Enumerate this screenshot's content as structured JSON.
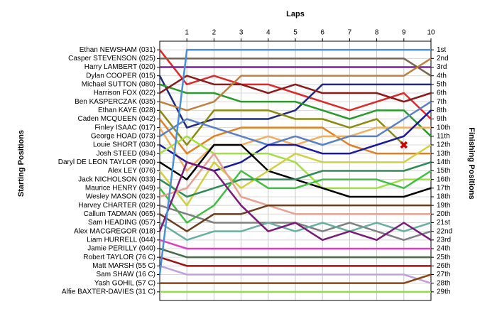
{
  "chart_data": {
    "type": "line",
    "title": "Laps",
    "ylabel": "Starting Positions",
    "y2label": "Finishing Positions",
    "x": [
      0,
      1,
      2,
      3,
      4,
      5,
      6,
      7,
      8,
      9,
      10
    ],
    "xlim": [
      0,
      10
    ],
    "xticks": [
      1,
      2,
      3,
      4,
      5,
      6,
      7,
      8,
      9,
      10
    ],
    "ylim": [
      30,
      0
    ],
    "grid": true,
    "yticks": [
      {
        "value": 1,
        "label": "Ethan NEWSHAM (031)"
      },
      {
        "value": 2,
        "label": "Casper STEVENSON (025)"
      },
      {
        "value": 3,
        "label": "Harry LAMBERT (020)"
      },
      {
        "value": 4,
        "label": "Dylan COOPER (015)"
      },
      {
        "value": 5,
        "label": "Michael SUTTON (080)"
      },
      {
        "value": 6,
        "label": "Harrison FOX (022)"
      },
      {
        "value": 7,
        "label": "Ben KASPERCZAK (035)"
      },
      {
        "value": 8,
        "label": "Ethan KAYE (028)"
      },
      {
        "value": 9,
        "label": "Caden MCQUEEN (042)"
      },
      {
        "value": 10,
        "label": "Finley ISAAC (017)"
      },
      {
        "value": 11,
        "label": "George HOAD (073)"
      },
      {
        "value": 12,
        "label": "Louie SHORT (030)"
      },
      {
        "value": 13,
        "label": "Josh STEED (094)"
      },
      {
        "value": 14,
        "label": "Daryl DE LEON TAYLOR (090)"
      },
      {
        "value": 15,
        "label": "Alex LEY (076)"
      },
      {
        "value": 16,
        "label": "Jack NICHOLSON (033)"
      },
      {
        "value": 17,
        "label": "Maurice HENRY (049)"
      },
      {
        "value": 18,
        "label": "Wesley MASON (023)"
      },
      {
        "value": 19,
        "label": "Harvey CHARTER (029)"
      },
      {
        "value": 20,
        "label": "Callum TADMAN (065)"
      },
      {
        "value": 21,
        "label": "Sam HEADING (057)"
      },
      {
        "value": 22,
        "label": "Alex MACGREGOR (018)"
      },
      {
        "value": 23,
        "label": "Liam HURRELL (044)"
      },
      {
        "value": 24,
        "label": "Jamie PERILLY (040)"
      },
      {
        "value": 25,
        "label": "Robert TAYLOR (76 C)"
      },
      {
        "value": 26,
        "label": "Matt MARSH (55 C)"
      },
      {
        "value": 27,
        "label": "Sam SHAW (16 C)"
      },
      {
        "value": 28,
        "label": "Yash GOHIL (57 C)"
      },
      {
        "value": 29,
        "label": "Alfie BAXTER-DAVIES (31 C)"
      }
    ],
    "y2ticks": [
      {
        "value": 1,
        "label": "1st"
      },
      {
        "value": 2,
        "label": "2nd"
      },
      {
        "value": 3,
        "label": "3rd"
      },
      {
        "value": 4,
        "label": "4th"
      },
      {
        "value": 5,
        "label": "5th"
      },
      {
        "value": 6,
        "label": "6th"
      },
      {
        "value": 7,
        "label": "7th"
      },
      {
        "value": 8,
        "label": "8th"
      },
      {
        "value": 9,
        "label": "9th"
      },
      {
        "value": 10,
        "label": "10th"
      },
      {
        "value": 11,
        "label": "11th"
      },
      {
        "value": 12,
        "label": "12th"
      },
      {
        "value": 13,
        "label": "13th"
      },
      {
        "value": 14,
        "label": "14th"
      },
      {
        "value": 15,
        "label": "15th"
      },
      {
        "value": 16,
        "label": "16th"
      },
      {
        "value": 17,
        "label": "17th"
      },
      {
        "value": 18,
        "label": "18th"
      },
      {
        "value": 19,
        "label": "19th"
      },
      {
        "value": 20,
        "label": "20th"
      },
      {
        "value": 21,
        "label": "21st"
      },
      {
        "value": 22,
        "label": "22nd"
      },
      {
        "value": 23,
        "label": "23rd"
      },
      {
        "value": 24,
        "label": "24th"
      },
      {
        "value": 25,
        "label": "25th"
      },
      {
        "value": 26,
        "label": "26th"
      },
      {
        "value": 27,
        "label": "27th"
      },
      {
        "value": 28,
        "label": "28th"
      },
      {
        "value": 29,
        "label": "29th"
      }
    ],
    "series": [
      {
        "name": "Ethan NEWSHAM (031)",
        "color": "#e02828",
        "values": [
          1,
          5,
          4,
          5,
          5,
          6,
          7,
          8,
          7,
          6,
          9
        ]
      },
      {
        "name": "Casper STEVENSON (025)",
        "color": "#7a6650",
        "values": [
          2,
          2,
          2,
          2,
          2,
          2,
          2,
          2,
          2,
          2,
          4
        ]
      },
      {
        "name": "Harry LAMBERT (020)",
        "color": "#7b1fa2",
        "values": [
          3,
          3,
          3,
          3,
          3,
          3,
          3,
          3,
          3,
          3,
          3
        ]
      },
      {
        "name": "Dylan COOPER (015)",
        "color": "#1f2a80",
        "values": [
          4,
          10,
          9,
          9,
          9,
          8,
          5,
          5,
          5,
          5,
          5
        ]
      },
      {
        "name": "Michael SUTTON (080)",
        "color": "#2a9a2a",
        "values": [
          5,
          6,
          6,
          7,
          7,
          7,
          8,
          9,
          8,
          8,
          11
        ]
      },
      {
        "name": "Harrison FOX (022)",
        "color": "#8b1a1a",
        "values": [
          6,
          4,
          5,
          5,
          6,
          5,
          6,
          6,
          6,
          7,
          6
        ]
      },
      {
        "name": "Ben KASPERCZAK (035)",
        "color": "#c08040",
        "values": [
          7,
          8,
          7,
          4,
          4,
          4,
          4,
          4,
          4,
          4,
          2
        ]
      },
      {
        "name": "Ethan KAYE (028)",
        "color": "#8b8b10",
        "values": [
          8,
          12,
          8,
          8,
          8,
          9,
          9,
          10,
          9,
          12,
          null
        ]
      },
      {
        "name": "Caden MCQUEEN (042)",
        "color": "#e08020",
        "values": [
          9,
          13,
          11,
          10,
          10,
          10,
          10,
          12,
          13,
          13,
          13
        ]
      },
      {
        "name": "Finley ISAAC (017)",
        "color": "#f0b060",
        "values": [
          10,
          15,
          12,
          12,
          11,
          12,
          11,
          11,
          10,
          10,
          10
        ]
      },
      {
        "name": "George HOAD (073)",
        "color": "#5a80c8",
        "values": [
          11,
          9,
          10,
          11,
          12,
          11,
          12,
          11,
          11,
          9,
          7
        ]
      },
      {
        "name": "Louie SHORT (030)",
        "color": "#1a1aa0",
        "values": [
          12,
          14,
          15,
          14,
          12,
          12,
          13,
          13,
          12,
          11,
          8
        ]
      },
      {
        "name": "Josh STEED (094)",
        "color": "#a0e040",
        "values": [
          13,
          11,
          13,
          13,
          13,
          14,
          17,
          17,
          17,
          16,
          16
        ]
      },
      {
        "name": "Daryl DE LEON TAYLOR (090)",
        "color": "#000000",
        "values": [
          14,
          16,
          12,
          12,
          15,
          16,
          17,
          18,
          18,
          18,
          17
        ]
      },
      {
        "name": "Alex LEY (076)",
        "color": "#d0d040",
        "values": [
          15,
          19,
          14,
          17,
          15,
          13,
          14,
          14,
          14,
          14,
          12
        ]
      },
      {
        "name": "Jack NICHOLSON (033)",
        "color": "#2e8b57",
        "values": [
          16,
          18,
          17,
          16,
          16,
          16,
          15,
          15,
          15,
          15,
          14
        ]
      },
      {
        "name": "Maurice HENRY (049)",
        "color": "#40c040",
        "values": [
          17,
          21,
          19,
          15,
          17,
          17,
          16,
          16,
          16,
          17,
          15
        ]
      },
      {
        "name": "Wesley MASON (023)",
        "color": "#e8a090",
        "values": [
          18,
          17,
          13,
          18,
          19,
          20,
          20,
          20,
          20,
          20,
          20
        ]
      },
      {
        "name": "Harvey CHARTER (029)",
        "color": "#808080",
        "values": [
          19,
          20,
          21,
          21,
          21,
          21,
          22,
          21,
          22,
          23,
          22
        ]
      },
      {
        "name": "Callum TADMAN (065)",
        "color": "#6a3f20",
        "values": [
          20,
          22,
          20,
          20,
          19,
          19,
          19,
          19,
          19,
          19,
          19
        ]
      },
      {
        "name": "Sam HEADING (057)",
        "color": "#6ab0a0",
        "values": [
          21,
          23,
          22,
          22,
          21,
          22,
          21,
          22,
          21,
          22,
          21
        ]
      },
      {
        "name": "Alex MACGREGOR (018)",
        "color": "#7a1a7a",
        "values": [
          22,
          14,
          15,
          19,
          22,
          21,
          23,
          22,
          23,
          21,
          23
        ]
      },
      {
        "name": "Liam HURRELL (044)",
        "color": "#e040c0",
        "values": [
          23,
          24,
          24,
          24,
          24,
          24,
          24,
          24,
          24,
          24,
          24
        ]
      },
      {
        "name": "Jamie PERILLY (040)",
        "color": "#4a6a4a",
        "values": [
          24,
          25,
          25,
          25,
          25,
          25,
          25,
          25,
          25,
          25,
          25
        ]
      },
      {
        "name": "Robert TAYLOR (76 C)",
        "color": "#a01010",
        "values": [
          25,
          26,
          26,
          26,
          26,
          26,
          26,
          26,
          26,
          26,
          26
        ]
      },
      {
        "name": "Matt MARSH (55 C)",
        "color": "#c0a0e0",
        "values": [
          26,
          27,
          27,
          27,
          27,
          27,
          27,
          27,
          27,
          27,
          28
        ]
      },
      {
        "name": "Sam SHAW (16 C)",
        "color": "#4a90d9",
        "values": [
          27,
          1,
          1,
          1,
          1,
          1,
          1,
          1,
          1,
          1,
          1
        ]
      },
      {
        "name": "Yash GOHIL (57 C)",
        "color": "#8b4513",
        "values": [
          28,
          28,
          28,
          28,
          28,
          28,
          28,
          28,
          28,
          28,
          27
        ]
      },
      {
        "name": "Alfie BAXTER-DAVIES (31 C)",
        "color": "#90e040",
        "values": [
          29,
          29,
          29,
          29,
          29,
          29,
          29,
          29,
          29,
          29,
          29
        ]
      }
    ]
  }
}
